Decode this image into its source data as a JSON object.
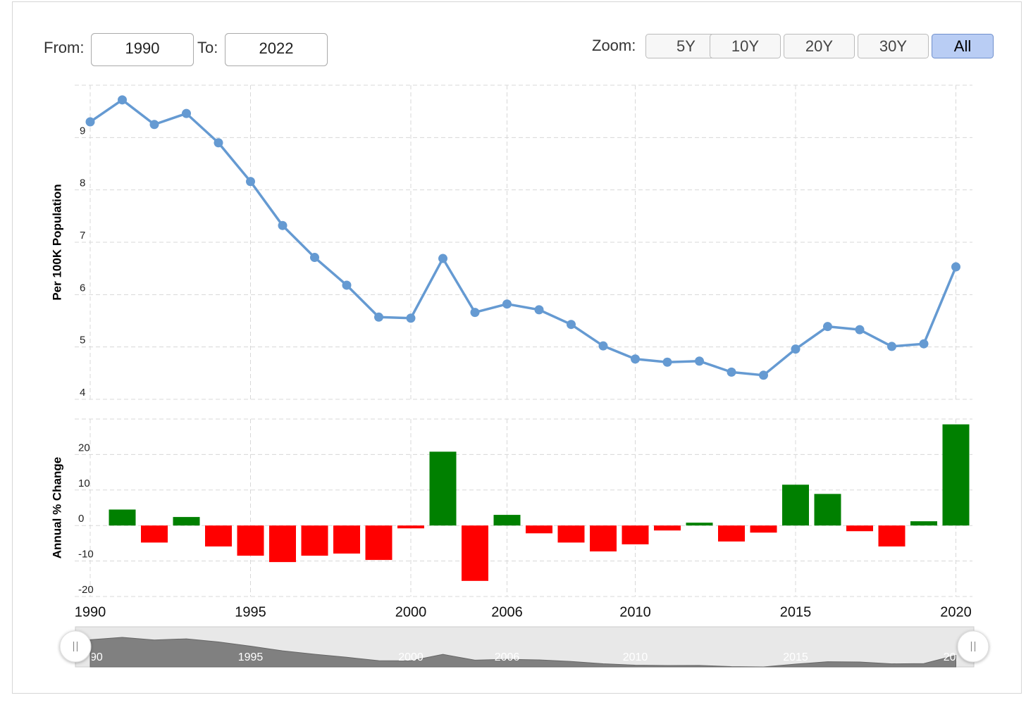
{
  "range_selector": {
    "from_label": "From:",
    "from": "1990",
    "to_label": "To:",
    "to": "2022",
    "zoom_label": "Zoom:",
    "zoom_buttons": [
      "5Y",
      "10Y",
      "20Y",
      "30Y",
      "All"
    ],
    "selected": "All"
  },
  "chart_data": [
    {
      "type": "line",
      "ylabel": "Per 100K Population",
      "categories": [
        "1990",
        null,
        null,
        null,
        null,
        "1995",
        null,
        null,
        null,
        null,
        "2000",
        null,
        null,
        "2006",
        null,
        null,
        null,
        "2010",
        null,
        null,
        null,
        null,
        "2015",
        null,
        null,
        null,
        null,
        "2020"
      ],
      "values": [
        9.3,
        9.72,
        9.25,
        9.46,
        8.9,
        8.16,
        7.32,
        6.71,
        6.18,
        5.57,
        5.55,
        6.69,
        5.66,
        5.82,
        5.71,
        5.43,
        5.02,
        4.77,
        4.71,
        4.73,
        4.52,
        4.46,
        4.96,
        5.39,
        5.33,
        5.01,
        5.06,
        6.53
      ],
      "color": "#659ad2",
      "ylim": [
        4,
        10
      ],
      "yticks": [
        4,
        5,
        6,
        7,
        8,
        9
      ],
      "grid": true,
      "markers": true
    },
    {
      "type": "bar",
      "ylabel": "Annual % Change",
      "categories": [
        "1990",
        null,
        null,
        null,
        null,
        "1995",
        null,
        null,
        null,
        null,
        "2000",
        null,
        null,
        "2006",
        null,
        null,
        null,
        "2010",
        null,
        null,
        null,
        null,
        "2015",
        null,
        null,
        null,
        null,
        "2020"
      ],
      "values": [
        null,
        4.5,
        -4.8,
        2.4,
        -5.9,
        -8.5,
        -10.3,
        -8.5,
        -7.9,
        -9.7,
        -0.8,
        20.8,
        -15.6,
        3.0,
        -2.2,
        -4.8,
        -7.3,
        -5.3,
        -1.4,
        0.8,
        -4.5,
        -2.0,
        11.5,
        8.9,
        -1.6,
        -5.9,
        1.2,
        28.5
      ],
      "color": "#008000",
      "negative_color": "#ff0000",
      "ylim": [
        -20,
        30
      ],
      "yticks": [
        -20,
        -10,
        0,
        10,
        20
      ],
      "grid": true
    }
  ]
}
